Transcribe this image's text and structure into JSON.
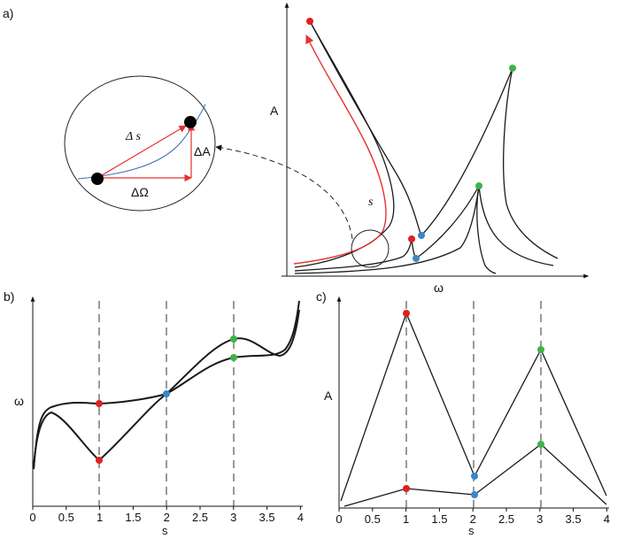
{
  "panels": {
    "a": {
      "label": "a)",
      "y_label": "A",
      "x_label": "ω",
      "path_label": "s"
    },
    "b": {
      "label": "b)",
      "y_label": "ω",
      "x_label": "s",
      "x_ticks": [
        "0",
        "0.5",
        "1",
        "1.5",
        "2",
        "2.5",
        "3",
        "3.5",
        "4"
      ]
    },
    "c": {
      "label": "c)",
      "y_label": "A",
      "x_label": "s",
      "x_ticks": [
        "0",
        "0.5",
        "1",
        "1.5",
        "2",
        "2.5",
        "3",
        "3.5",
        "4"
      ]
    }
  },
  "inset": {
    "ds_label": "Δ s",
    "dA_label": "ΔA",
    "dOmega_label": "ΔΩ"
  },
  "colors": {
    "red": "#e02020",
    "blue": "#3a87c8",
    "green": "#3fb24a",
    "arrow_red": "#e83030",
    "inset_curve": "#3a6fb0",
    "line": "#1a1a1a"
  }
}
